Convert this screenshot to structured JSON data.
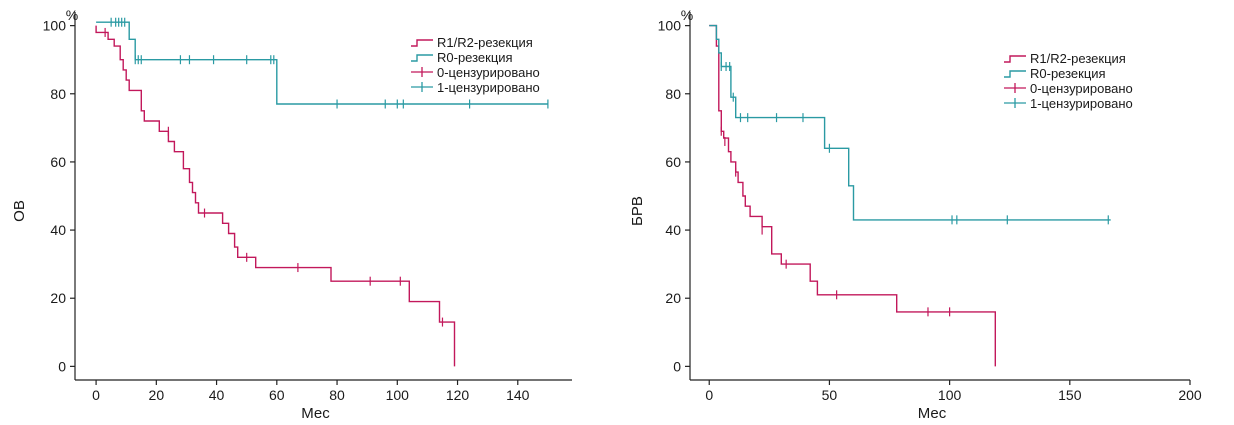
{
  "colors": {
    "r12": "#c2185b",
    "r0": "#2a9aa3",
    "axis": "#222222"
  },
  "chart_data": [
    {
      "type": "line",
      "title": "",
      "xlabel": "Мес",
      "ylabel": "ОВ",
      "unit_label": "%",
      "xlim": [
        -7,
        158
      ],
      "ylim": [
        -4,
        104
      ],
      "xticks": [
        0,
        20,
        40,
        60,
        80,
        100,
        120,
        140
      ],
      "yticks": [
        0,
        20,
        40,
        60,
        80,
        100
      ],
      "legend": [
        "R1/R2-резекция",
        "R0-резекция",
        "0-цензурировано",
        "1-цензурировано"
      ],
      "series": [
        {
          "name": "R1/R2-резекция",
          "color": "r12",
          "steps": [
            [
              0,
              100
            ],
            [
              0,
              98
            ],
            [
              4,
              98
            ],
            [
              4,
              96
            ],
            [
              6,
              96
            ],
            [
              6,
              94
            ],
            [
              8,
              94
            ],
            [
              8,
              90
            ],
            [
              9,
              90
            ],
            [
              9,
              87
            ],
            [
              10,
              87
            ],
            [
              10,
              84
            ],
            [
              11,
              84
            ],
            [
              11,
              81
            ],
            [
              15,
              81
            ],
            [
              15,
              75
            ],
            [
              16,
              75
            ],
            [
              16,
              72
            ],
            [
              21,
              72
            ],
            [
              21,
              69
            ],
            [
              24,
              69
            ],
            [
              24,
              66
            ],
            [
              26,
              66
            ],
            [
              26,
              63
            ],
            [
              29,
              63
            ],
            [
              29,
              58
            ],
            [
              31,
              58
            ],
            [
              31,
              54
            ],
            [
              32,
              54
            ],
            [
              32,
              51
            ],
            [
              33,
              51
            ],
            [
              33,
              48
            ],
            [
              34,
              48
            ],
            [
              34,
              45
            ],
            [
              42,
              45
            ],
            [
              42,
              42
            ],
            [
              44,
              42
            ],
            [
              44,
              39
            ],
            [
              46,
              39
            ],
            [
              46,
              35
            ],
            [
              47,
              35
            ],
            [
              47,
              32
            ],
            [
              53,
              32
            ],
            [
              53,
              29
            ],
            [
              78,
              29
            ],
            [
              78,
              25
            ],
            [
              104,
              25
            ],
            [
              104,
              19
            ],
            [
              114,
              19
            ],
            [
              114,
              13
            ],
            [
              119,
              13
            ],
            [
              119,
              0
            ]
          ],
          "censored": [
            [
              3,
              98
            ],
            [
              24,
              69
            ],
            [
              36,
              45
            ],
            [
              50,
              32
            ],
            [
              67,
              29
            ],
            [
              91,
              25
            ],
            [
              101,
              25
            ],
            [
              115,
              13
            ]
          ]
        },
        {
          "name": "R0-резекция",
          "color": "r0",
          "steps": [
            [
              0,
              101
            ],
            [
              11,
              101
            ],
            [
              11,
              96
            ],
            [
              13,
              96
            ],
            [
              13,
              90
            ],
            [
              60,
              90
            ],
            [
              60,
              77
            ],
            [
              150,
              77
            ]
          ],
          "censored": [
            [
              5,
              101
            ],
            [
              6.5,
              101
            ],
            [
              7.5,
              101
            ],
            [
              8.5,
              101
            ],
            [
              9.5,
              101
            ],
            [
              13,
              90
            ],
            [
              14,
              90
            ],
            [
              15,
              90
            ],
            [
              28,
              90
            ],
            [
              31,
              90
            ],
            [
              39,
              90
            ],
            [
              50,
              90
            ],
            [
              58,
              90
            ],
            [
              59,
              90
            ],
            [
              80,
              77
            ],
            [
              96,
              77
            ],
            [
              100,
              77
            ],
            [
              102,
              77
            ],
            [
              124,
              77
            ],
            [
              150,
              77
            ]
          ]
        }
      ]
    },
    {
      "type": "line",
      "title": "",
      "xlabel": "Мес",
      "ylabel": "БРВ",
      "unit_label": "%",
      "xlim": [
        -8,
        200
      ],
      "ylim": [
        -4,
        104
      ],
      "xticks": [
        0,
        50,
        100,
        150,
        200
      ],
      "yticks": [
        0,
        20,
        40,
        60,
        80,
        100
      ],
      "legend": [
        "R1/R2-резекция",
        "R0-резекция",
        "0-цензурировано",
        "1-цензурировано"
      ],
      "series": [
        {
          "name": "R1/R2-резекция",
          "color": "r12",
          "steps": [
            [
              0,
              100
            ],
            [
              3,
              100
            ],
            [
              3,
              94
            ],
            [
              4,
              94
            ],
            [
              4,
              75
            ],
            [
              5,
              75
            ],
            [
              5,
              69
            ],
            [
              6,
              69
            ],
            [
              6,
              67
            ],
            [
              8,
              67
            ],
            [
              8,
              63
            ],
            [
              9,
              63
            ],
            [
              9,
              60
            ],
            [
              11,
              60
            ],
            [
              11,
              57
            ],
            [
              12,
              57
            ],
            [
              12,
              54
            ],
            [
              14,
              54
            ],
            [
              14,
              50
            ],
            [
              15,
              50
            ],
            [
              15,
              47
            ],
            [
              17,
              47
            ],
            [
              17,
              44
            ],
            [
              22,
              44
            ],
            [
              22,
              41
            ],
            [
              26,
              41
            ],
            [
              26,
              33
            ],
            [
              30,
              33
            ],
            [
              30,
              30
            ],
            [
              42,
              30
            ],
            [
              42,
              25
            ],
            [
              45,
              25
            ],
            [
              45,
              21
            ],
            [
              78,
              21
            ],
            [
              78,
              16
            ],
            [
              119,
              16
            ],
            [
              119,
              0
            ]
          ],
          "censored": [
            [
              5,
              69
            ],
            [
              6.5,
              66
            ],
            [
              11,
              57
            ],
            [
              22,
              40
            ],
            [
              32,
              30
            ],
            [
              53,
              21
            ],
            [
              91,
              16
            ],
            [
              100,
              16
            ]
          ]
        },
        {
          "name": "R0-резекция",
          "color": "r0",
          "steps": [
            [
              0,
              100
            ],
            [
              3,
              100
            ],
            [
              3,
              96
            ],
            [
              4,
              96
            ],
            [
              4,
              92
            ],
            [
              5,
              92
            ],
            [
              5,
              88
            ],
            [
              9,
              88
            ],
            [
              9,
              79
            ],
            [
              11,
              79
            ],
            [
              11,
              73
            ],
            [
              48,
              73
            ],
            [
              48,
              64
            ],
            [
              58,
              64
            ],
            [
              58,
              53
            ],
            [
              60,
              53
            ],
            [
              60,
              43
            ],
            [
              167,
              43
            ]
          ],
          "censored": [
            [
              5,
              88
            ],
            [
              7,
              88
            ],
            [
              8.5,
              88
            ],
            [
              10,
              79
            ],
            [
              13,
              73
            ],
            [
              16,
              73
            ],
            [
              28,
              73
            ],
            [
              39,
              73
            ],
            [
              50,
              64
            ],
            [
              101,
              43
            ],
            [
              103,
              43
            ],
            [
              124,
              43
            ],
            [
              166,
              43
            ]
          ]
        }
      ]
    }
  ]
}
